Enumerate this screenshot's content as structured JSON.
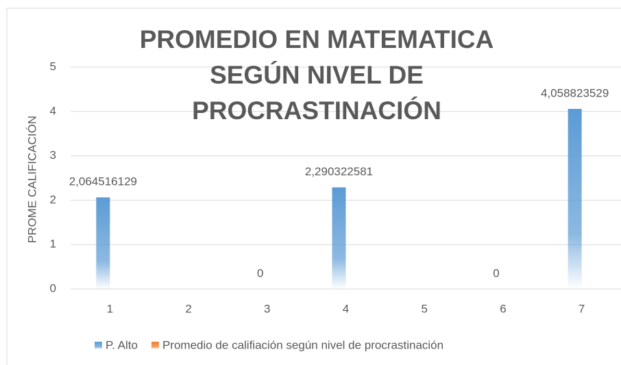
{
  "chart_data": {
    "type": "bar",
    "title": [
      "PROMEDIO EN MATEMATICA",
      "SEGÚN NIVEL DE",
      "PROCRASTINACIÓN"
    ],
    "y_label": "PROME CALIFICACIÓN",
    "categories": [
      "1",
      "2",
      "3",
      "4",
      "5",
      "6",
      "7"
    ],
    "series": [
      {
        "name": "P. Alto",
        "color": "#5b9bd5",
        "values": [
          2.064516129,
          null,
          0,
          2.290322581,
          null,
          0,
          4.058823529
        ],
        "value_labels": [
          "2,064516129",
          null,
          "0",
          "2,290322581",
          null,
          "0",
          "4,058823529"
        ]
      },
      {
        "name": "Promedio de califiación según nivel de procrastinación",
        "color": "#ed7d31",
        "values": [
          null,
          null,
          null,
          null,
          null,
          null,
          null
        ]
      }
    ],
    "ylim": [
      0,
      5
    ],
    "yticks": [
      0,
      1,
      2,
      3,
      4,
      5
    ],
    "grid": true
  }
}
